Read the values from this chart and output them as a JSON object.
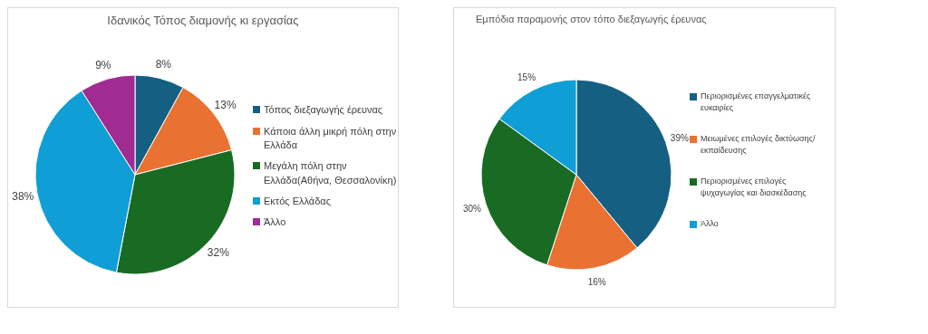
{
  "chart_data": [
    {
      "type": "pie",
      "title": "Ιδανικός Τόπος διαμονής κι εργασίας",
      "categories": [
        "Τόπος διεξαγωγής έρευνας",
        "Κάποια άλλη μικρή πόλη στην Ελλάδα",
        "Μεγάλη πόλη στην Ελλάδα(Αθήνα, Θεσσαλονίκη)",
        "Εκτός Ελλάδας",
        "Άλλο"
      ],
      "values": [
        8,
        13,
        32,
        38,
        9
      ],
      "colors": [
        "#156082",
        "#e97132",
        "#196b24",
        "#0f9ed5",
        "#a02b93"
      ],
      "value_labels": [
        "8%",
        "13%",
        "32%",
        "38%",
        "9%"
      ],
      "legend": "right"
    },
    {
      "type": "pie",
      "title": "Εμπόδια παραμονής στον τόπο διεξαγωγής έρευνας",
      "categories": [
        "Περιορισμένες επαγγελματικές ευκαιρίες",
        "Μειωμένες επιλογές δικτύωσης/εκπαίδευσης",
        "Περιορισμένες επιλογές ψυχαγωγίας και διασκέδασης",
        "Άλλο"
      ],
      "values": [
        39,
        16,
        30,
        15
      ],
      "colors": [
        "#156082",
        "#e97132",
        "#196b24",
        "#0f9ed5"
      ],
      "value_labels": [
        "39%",
        "16%",
        "30%",
        "15%"
      ],
      "legend": "right"
    }
  ]
}
